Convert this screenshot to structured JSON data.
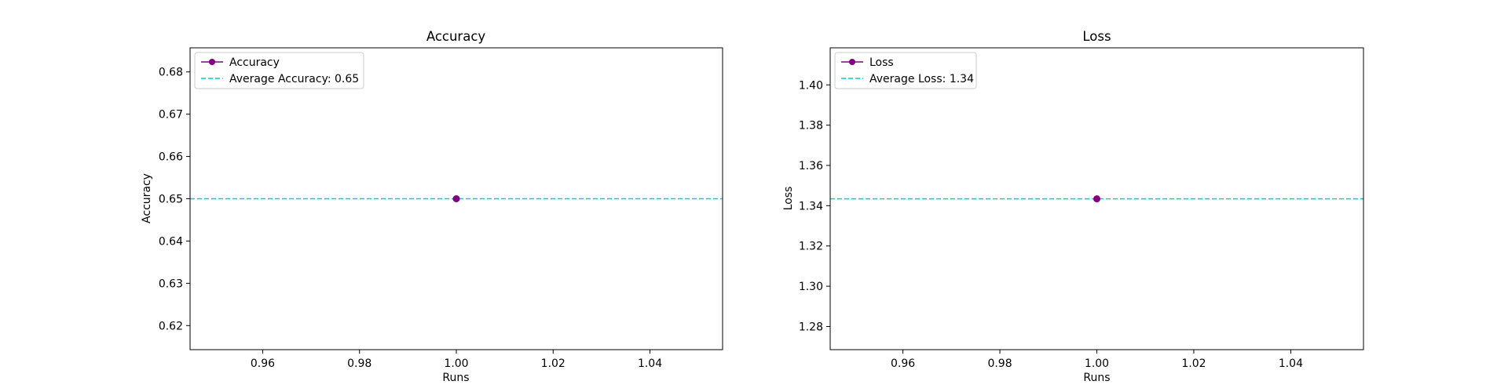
{
  "colors": {
    "series": "#800080",
    "average": "#00CED1",
    "axes": "#000000",
    "background": "#ffffff"
  },
  "chart_data": [
    {
      "type": "line",
      "title": "Accuracy",
      "xlabel": "Runs",
      "ylabel": "Accuracy",
      "xlim": [
        0.945,
        1.055
      ],
      "ylim": [
        0.6143,
        0.6857
      ],
      "xticks": [
        0.96,
        0.98,
        1.0,
        1.02,
        1.04
      ],
      "xtick_labels": [
        "0.96",
        "0.98",
        "1.00",
        "1.02",
        "1.04"
      ],
      "yticks": [
        0.62,
        0.63,
        0.64,
        0.65,
        0.66,
        0.67,
        0.68
      ],
      "ytick_labels": [
        "0.62",
        "0.63",
        "0.64",
        "0.65",
        "0.66",
        "0.67",
        "0.68"
      ],
      "series": [
        {
          "name": "Accuracy",
          "x": [
            1.0
          ],
          "y": [
            0.65
          ],
          "marker": "circle"
        }
      ],
      "hlines": [
        {
          "name": "Average Accuracy: 0.65",
          "y": 0.65,
          "style": "dashed"
        }
      ],
      "legend": "upper-left",
      "grid": false
    },
    {
      "type": "line",
      "title": "Loss",
      "xlabel": "Runs",
      "ylabel": "Loss",
      "xlim": [
        0.945,
        1.055
      ],
      "ylim": [
        1.2685,
        1.4184
      ],
      "xticks": [
        0.96,
        0.98,
        1.0,
        1.02,
        1.04
      ],
      "xtick_labels": [
        "0.96",
        "0.98",
        "1.00",
        "1.02",
        "1.04"
      ],
      "yticks": [
        1.28,
        1.3,
        1.32,
        1.34,
        1.36,
        1.38,
        1.4
      ],
      "ytick_labels": [
        "1.28",
        "1.30",
        "1.32",
        "1.34",
        "1.36",
        "1.38",
        "1.40"
      ],
      "series": [
        {
          "name": "Loss",
          "x": [
            1.0
          ],
          "y": [
            1.3434
          ],
          "marker": "circle"
        }
      ],
      "hlines": [
        {
          "name": "Average Loss: 1.34",
          "y": 1.3434,
          "style": "dashed"
        }
      ],
      "legend": "upper-left",
      "grid": false
    }
  ]
}
